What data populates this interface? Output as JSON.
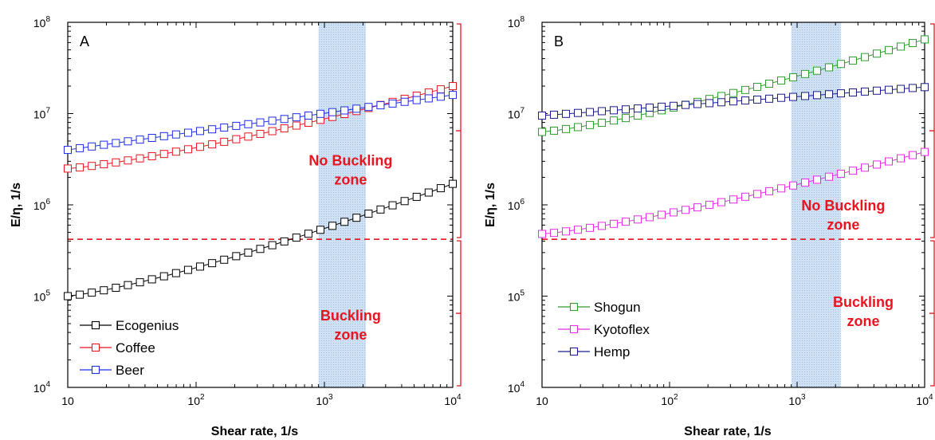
{
  "chart_data": [
    {
      "type": "scatter",
      "panel_label": "A",
      "xlabel": "Shear rate, 1/s",
      "ylabel": "E/η, 1/s",
      "xscale": "log",
      "yscale": "log",
      "xlim": [
        10,
        10000
      ],
      "ylim": [
        10000,
        100000000
      ],
      "x_ticks": [
        {
          "value": 10,
          "label": "10"
        },
        {
          "value": 100,
          "base": "10",
          "exp": "2"
        },
        {
          "value": 1000,
          "base": "10",
          "exp": "3"
        },
        {
          "value": 10000,
          "base": "10",
          "exp": "4"
        }
      ],
      "y_ticks": [
        {
          "value": 10000,
          "base": "10",
          "exp": "4"
        },
        {
          "value": 100000,
          "base": "10",
          "exp": "5"
        },
        {
          "value": 1000000,
          "base": "10",
          "exp": "6"
        },
        {
          "value": 10000000,
          "base": "10",
          "exp": "7"
        },
        {
          "value": 100000000,
          "base": "10",
          "exp": "8"
        }
      ],
      "shaded_band": {
        "x": [
          900,
          2100
        ],
        "color": "#bcd6ee"
      },
      "threshold": {
        "y": 420000,
        "color": "#e8141e",
        "style": "dashed"
      },
      "zones": [
        {
          "lines": [
            "No Buckling",
            "zone"
          ],
          "x": 1600,
          "y": 2500000,
          "range": [
            420000,
            100000000
          ]
        },
        {
          "lines": [
            "Buckling",
            "zone"
          ],
          "x": 1600,
          "y": 50000,
          "range": [
            10000,
            420000
          ]
        }
      ],
      "legend_position": "bottom-left",
      "series": [
        {
          "name": "Ecogenius",
          "color": "#000000",
          "marker": "square-open",
          "points": 33,
          "start": [
            10,
            100000
          ],
          "end": [
            10000,
            1700000
          ],
          "curve": "power-rising"
        },
        {
          "name": "Coffee",
          "color": "#e8141e",
          "marker": "square-open",
          "points": 33,
          "start": [
            10,
            2500000
          ],
          "end": [
            10000,
            20000000
          ],
          "curve": "power-rising"
        },
        {
          "name": "Beer",
          "color": "#1f2de8",
          "marker": "square-open",
          "points": 33,
          "start": [
            10,
            4000000
          ],
          "end": [
            10000,
            16000000
          ],
          "curve": "power-linear"
        }
      ]
    },
    {
      "type": "scatter",
      "panel_label": "B",
      "xlabel": "Shear rate, 1/s",
      "ylabel": "E/η, 1/s",
      "xscale": "log",
      "yscale": "log",
      "xlim": [
        10,
        10000
      ],
      "ylim": [
        10000,
        100000000
      ],
      "x_ticks": [
        {
          "value": 10,
          "label": "10"
        },
        {
          "value": 100,
          "base": "10",
          "exp": "2"
        },
        {
          "value": 1000,
          "base": "10",
          "exp": "3"
        },
        {
          "value": 10000,
          "base": "10",
          "exp": "4"
        }
      ],
      "y_ticks": [
        {
          "value": 10000,
          "base": "10",
          "exp": "4"
        },
        {
          "value": 100000,
          "base": "10",
          "exp": "5"
        },
        {
          "value": 1000000,
          "base": "10",
          "exp": "6"
        },
        {
          "value": 10000000,
          "base": "10",
          "exp": "7"
        },
        {
          "value": 100000000,
          "base": "10",
          "exp": "8"
        }
      ],
      "shaded_band": {
        "x": [
          900,
          2200
        ],
        "color": "#bcd6ee"
      },
      "threshold": {
        "y": 420000,
        "color": "#e8141e",
        "style": "dashed"
      },
      "zones": [
        {
          "lines": [
            "No Buckling",
            "zone"
          ],
          "x": 2300,
          "y": 800000,
          "range": [
            420000,
            100000000
          ]
        },
        {
          "lines": [
            "Buckling",
            "zone"
          ],
          "x": 3300,
          "y": 70000,
          "range": [
            10000,
            420000
          ]
        }
      ],
      "legend_position": "bottom-left",
      "series": [
        {
          "name": "Shogun",
          "color": "#2e9e2e",
          "marker": "square-open",
          "points": 33,
          "start": [
            10,
            6300000
          ],
          "end": [
            10000,
            65000000
          ],
          "curve": "power-rising"
        },
        {
          "name": "Kyotoflex",
          "color": "#e32ee3",
          "marker": "square-open",
          "points": 33,
          "start": [
            10,
            480000
          ],
          "end": [
            10000,
            3800000
          ],
          "curve": "power-rising"
        },
        {
          "name": "Hemp",
          "color": "#1c1c8a",
          "marker": "square-open",
          "points": 33,
          "start": [
            10,
            9500000
          ],
          "end": [
            10000,
            19500000
          ],
          "curve": "power-linear"
        }
      ]
    }
  ]
}
